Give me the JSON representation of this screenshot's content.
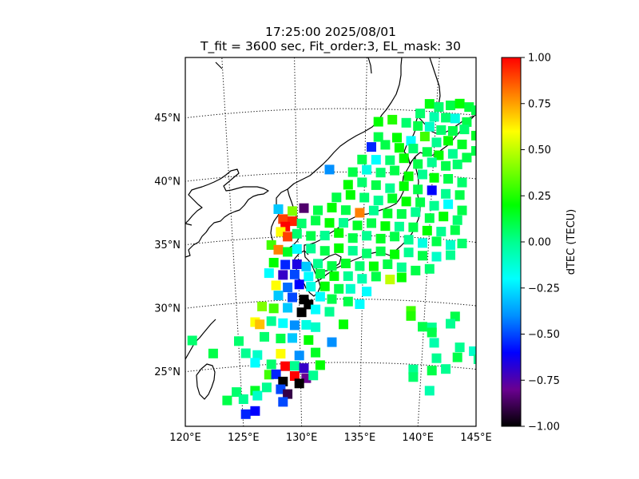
{
  "title": {
    "line1": "17:25:00 2025/08/01",
    "line2": "T_fit = 3600 sec, Fit_order:3, EL_mask: 30"
  },
  "map": {
    "lon_range": [
      120,
      145
    ],
    "lat_range": [
      20,
      49
    ],
    "graticule_style": "dotted",
    "lon_ticks": [
      {
        "value": 120,
        "label": "120°E"
      },
      {
        "value": 125,
        "label": "125°E"
      },
      {
        "value": 130,
        "label": "130°E"
      },
      {
        "value": 135,
        "label": "135°E"
      },
      {
        "value": 140,
        "label": "140°E"
      },
      {
        "value": 145,
        "label": "145°E"
      }
    ],
    "lat_ticks": [
      {
        "value": 25,
        "label": "25°N"
      },
      {
        "value": 30,
        "label": "30°N"
      },
      {
        "value": 35,
        "label": "35°N"
      },
      {
        "value": 40,
        "label": "40°N"
      },
      {
        "value": 45,
        "label": "45°N"
      }
    ]
  },
  "colorbar": {
    "label": "dTEC (TECU)",
    "range": [
      -1.0,
      1.0
    ],
    "ticks": [
      {
        "value": 1.0,
        "label": "1.00"
      },
      {
        "value": 0.75,
        "label": "0.75"
      },
      {
        "value": 0.5,
        "label": "0.50"
      },
      {
        "value": 0.25,
        "label": "0.25"
      },
      {
        "value": 0.0,
        "label": "0.00"
      },
      {
        "value": -0.25,
        "label": "−0.25"
      },
      {
        "value": -0.5,
        "label": "−0.50"
      },
      {
        "value": -0.75,
        "label": "−0.75"
      },
      {
        "value": -1.0,
        "label": "−1.00"
      }
    ],
    "colormap": [
      "#000000",
      "#6a0090",
      "#0000ff",
      "#0090ff",
      "#00ffff",
      "#00ff90",
      "#00ff00",
      "#80ff00",
      "#ffff00",
      "#ff8000",
      "#ff0000"
    ]
  },
  "chart_data": {
    "type": "scatter",
    "note_fields": "lon, lat, dTEC",
    "points": [
      [
        141.0,
        45.6,
        0.18
      ],
      [
        141.8,
        45.4,
        0.05
      ],
      [
        142.8,
        45.6,
        0.1
      ],
      [
        143.6,
        45.8,
        0.2
      ],
      [
        144.4,
        45.6,
        0.12
      ],
      [
        145.0,
        45.4,
        0.1
      ],
      [
        140.2,
        44.8,
        0.05
      ],
      [
        141.4,
        44.6,
        -0.05
      ],
      [
        142.4,
        44.6,
        0.05
      ],
      [
        143.2,
        44.6,
        -0.15
      ],
      [
        144.2,
        44.4,
        0.1
      ],
      [
        136.6,
        44.0,
        0.2
      ],
      [
        137.8,
        44.2,
        0.25
      ],
      [
        139.0,
        44.0,
        0.05
      ],
      [
        140.0,
        43.8,
        0.1
      ],
      [
        141.0,
        43.8,
        -0.1
      ],
      [
        142.0,
        43.6,
        0.05
      ],
      [
        143.0,
        43.6,
        0.1
      ],
      [
        144.0,
        43.8,
        0.05
      ],
      [
        145.0,
        43.4,
        0.15
      ],
      [
        136.6,
        42.8,
        0.1
      ],
      [
        138.2,
        42.8,
        0.2
      ],
      [
        139.4,
        42.6,
        -0.2
      ],
      [
        140.6,
        43.0,
        0.3
      ],
      [
        141.6,
        42.6,
        0.0
      ],
      [
        142.6,
        42.8,
        0.2
      ],
      [
        143.8,
        42.6,
        0.15
      ],
      [
        136.0,
        42.0,
        -0.55
      ],
      [
        137.2,
        42.2,
        0.1
      ],
      [
        138.4,
        42.0,
        0.2
      ],
      [
        139.6,
        42.0,
        0.05
      ],
      [
        140.8,
        41.8,
        0.1
      ],
      [
        141.8,
        41.6,
        0.2
      ],
      [
        143.0,
        41.8,
        0.0
      ],
      [
        144.2,
        41.6,
        0.1
      ],
      [
        145.0,
        42.2,
        0.1
      ],
      [
        135.2,
        41.0,
        0.1
      ],
      [
        136.4,
        41.0,
        -0.2
      ],
      [
        137.6,
        41.0,
        0.05
      ],
      [
        138.8,
        41.2,
        0.2
      ],
      [
        140.0,
        40.8,
        0.1
      ],
      [
        141.2,
        41.0,
        0.0
      ],
      [
        142.4,
        40.8,
        0.1
      ],
      [
        143.4,
        41.0,
        0.05
      ],
      [
        132.4,
        40.2,
        -0.4
      ],
      [
        134.4,
        40.0,
        0.1
      ],
      [
        135.6,
        40.2,
        -0.15
      ],
      [
        136.8,
        40.0,
        0.05
      ],
      [
        138.0,
        40.2,
        0.1
      ],
      [
        139.2,
        39.8,
        0.2
      ],
      [
        140.4,
        40.0,
        0.0
      ],
      [
        141.4,
        39.8,
        0.2
      ],
      [
        142.6,
        39.8,
        0.1
      ],
      [
        143.8,
        39.6,
        0.05
      ],
      [
        134.0,
        39.0,
        0.2
      ],
      [
        135.2,
        39.2,
        0.05
      ],
      [
        136.4,
        39.0,
        0.1
      ],
      [
        137.6,
        38.8,
        0.0
      ],
      [
        138.8,
        39.0,
        0.2
      ],
      [
        140.0,
        38.8,
        0.1
      ],
      [
        141.2,
        38.8,
        -0.6
      ],
      [
        142.4,
        38.6,
        0.0
      ],
      [
        143.6,
        38.6,
        0.1
      ],
      [
        133.0,
        38.0,
        0.1
      ],
      [
        134.2,
        38.2,
        0.2
      ],
      [
        135.4,
        38.0,
        0.05
      ],
      [
        136.6,
        37.8,
        0.0
      ],
      [
        137.8,
        38.0,
        0.15
      ],
      [
        139.0,
        37.8,
        0.2
      ],
      [
        140.2,
        37.8,
        0.1
      ],
      [
        141.4,
        37.6,
        0.0
      ],
      [
        142.6,
        37.8,
        -0.2
      ],
      [
        143.8,
        37.4,
        0.1
      ],
      [
        128.0,
        37.2,
        -0.3
      ],
      [
        129.2,
        37.0,
        0.4
      ],
      [
        130.2,
        37.2,
        -0.85
      ],
      [
        131.4,
        37.0,
        0.1
      ],
      [
        132.6,
        37.2,
        0.2
      ],
      [
        133.8,
        37.0,
        0.1
      ],
      [
        135.0,
        36.8,
        0.8
      ],
      [
        136.2,
        37.0,
        0.0
      ],
      [
        137.4,
        36.8,
        0.15
      ],
      [
        138.6,
        36.8,
        0.1
      ],
      [
        139.8,
        37.0,
        0.0
      ],
      [
        141.0,
        36.6,
        0.1
      ],
      [
        142.2,
        36.8,
        0.2
      ],
      [
        143.4,
        36.6,
        0.05
      ],
      [
        128.4,
        36.4,
        0.9
      ],
      [
        129.2,
        36.2,
        0.95
      ],
      [
        128.6,
        35.8,
        1.0
      ],
      [
        130.0,
        36.0,
        0.05
      ],
      [
        131.2,
        36.2,
        0.1
      ],
      [
        132.4,
        36.0,
        0.2
      ],
      [
        133.6,
        36.0,
        0.0
      ],
      [
        134.8,
        35.8,
        0.15
      ],
      [
        136.0,
        36.0,
        0.1
      ],
      [
        137.2,
        35.8,
        0.2
      ],
      [
        138.4,
        35.8,
        0.0
      ],
      [
        139.6,
        35.8,
        0.1
      ],
      [
        140.8,
        35.6,
        0.2
      ],
      [
        142.0,
        35.6,
        0.0
      ],
      [
        143.2,
        35.8,
        0.1
      ],
      [
        128.2,
        35.4,
        0.6
      ],
      [
        128.8,
        35.0,
        0.9
      ],
      [
        129.6,
        35.2,
        0.05
      ],
      [
        130.8,
        35.0,
        0.1
      ],
      [
        132.0,
        35.0,
        0.0
      ],
      [
        133.2,
        35.2,
        0.2
      ],
      [
        134.4,
        34.8,
        0.1
      ],
      [
        135.6,
        35.0,
        0.0
      ],
      [
        136.8,
        34.8,
        0.15
      ],
      [
        138.0,
        35.0,
        0.1
      ],
      [
        139.2,
        34.8,
        0.0
      ],
      [
        140.4,
        34.6,
        -0.15
      ],
      [
        141.6,
        34.8,
        0.1
      ],
      [
        142.8,
        34.6,
        -0.1
      ],
      [
        143.8,
        34.8,
        0.05
      ],
      [
        127.4,
        34.4,
        0.3
      ],
      [
        128.0,
        34.0,
        0.8
      ],
      [
        128.8,
        33.8,
        0.15
      ],
      [
        129.6,
        34.0,
        -0.2
      ],
      [
        130.8,
        34.0,
        0.0
      ],
      [
        132.0,
        33.8,
        0.1
      ],
      [
        133.2,
        34.0,
        0.2
      ],
      [
        134.4,
        33.8,
        0.0
      ],
      [
        135.6,
        33.6,
        0.05
      ],
      [
        136.8,
        33.8,
        0.1
      ],
      [
        138.0,
        33.6,
        0.2
      ],
      [
        139.2,
        33.8,
        0.0
      ],
      [
        140.4,
        33.6,
        0.1
      ],
      [
        141.6,
        33.6,
        -0.1
      ],
      [
        142.8,
        33.8,
        0.0
      ],
      [
        127.6,
        33.0,
        0.2
      ],
      [
        128.6,
        32.8,
        -0.55
      ],
      [
        129.6,
        32.8,
        -0.65
      ],
      [
        130.4,
        32.6,
        -0.3
      ],
      [
        131.4,
        32.8,
        0.0
      ],
      [
        132.6,
        32.6,
        0.1
      ],
      [
        133.8,
        32.8,
        0.15
      ],
      [
        135.0,
        32.6,
        0.05
      ],
      [
        136.2,
        32.6,
        0.2
      ],
      [
        137.4,
        32.8,
        0.1
      ],
      [
        138.6,
        32.6,
        0.0
      ],
      [
        139.8,
        32.4,
        0.1
      ],
      [
        141.0,
        32.6,
        0.05
      ],
      [
        127.2,
        32.2,
        -0.2
      ],
      [
        128.4,
        32.0,
        -0.7
      ],
      [
        129.4,
        32.0,
        -0.5
      ],
      [
        130.6,
        31.8,
        -0.2
      ],
      [
        131.6,
        32.0,
        0.1
      ],
      [
        132.8,
        31.8,
        0.2
      ],
      [
        134.0,
        31.8,
        0.0
      ],
      [
        135.2,
        31.6,
        -0.05
      ],
      [
        136.4,
        31.8,
        0.1
      ],
      [
        137.6,
        31.6,
        0.5
      ],
      [
        138.6,
        31.8,
        0.2
      ],
      [
        127.8,
        31.2,
        0.6
      ],
      [
        128.8,
        31.0,
        -0.45
      ],
      [
        129.8,
        31.2,
        -0.6
      ],
      [
        130.8,
        31.0,
        -0.15
      ],
      [
        132.0,
        31.0,
        0.2
      ],
      [
        133.2,
        30.8,
        0.1
      ],
      [
        134.2,
        30.8,
        -0.1
      ],
      [
        135.6,
        30.6,
        -0.2
      ],
      [
        128.0,
        30.4,
        -0.3
      ],
      [
        129.2,
        30.2,
        -0.5
      ],
      [
        130.2,
        30.0,
        -1.0
      ],
      [
        130.6,
        29.6,
        -1.0
      ],
      [
        131.6,
        30.2,
        -0.2
      ],
      [
        132.6,
        30.0,
        0.1
      ],
      [
        134.0,
        29.8,
        0.1
      ],
      [
        135.0,
        29.6,
        -0.2
      ],
      [
        126.6,
        29.6,
        0.4
      ],
      [
        127.6,
        29.4,
        0.3
      ],
      [
        128.8,
        29.4,
        -0.3
      ],
      [
        130.0,
        29.0,
        -1.0
      ],
      [
        131.2,
        29.2,
        -0.2
      ],
      [
        132.4,
        29.0,
        0.0
      ],
      [
        139.4,
        29.2,
        0.3
      ],
      [
        139.4,
        28.8,
        0.25
      ],
      [
        143.2,
        29.0,
        0.1
      ],
      [
        126.0,
        28.4,
        0.6
      ],
      [
        126.4,
        28.2,
        0.7
      ],
      [
        127.4,
        28.4,
        0.0
      ],
      [
        128.4,
        28.2,
        -0.2
      ],
      [
        129.4,
        28.0,
        -0.4
      ],
      [
        130.4,
        28.0,
        -0.15
      ],
      [
        131.2,
        27.8,
        -0.1
      ],
      [
        133.6,
        28.0,
        0.2
      ],
      [
        140.4,
        28.0,
        0.1
      ],
      [
        141.2,
        28.0,
        0.0
      ],
      [
        141.2,
        27.6,
        0.1
      ],
      [
        142.8,
        28.4,
        0.0
      ],
      [
        120.6,
        27.4,
        0.05
      ],
      [
        124.6,
        27.0,
        0.05
      ],
      [
        126.8,
        27.2,
        0.05
      ],
      [
        128.2,
        27.0,
        0.1
      ],
      [
        129.2,
        27.0,
        -0.3
      ],
      [
        130.6,
        26.8,
        0.2
      ],
      [
        132.6,
        26.6,
        -0.4
      ],
      [
        141.4,
        26.8,
        -0.05
      ],
      [
        143.6,
        26.6,
        0.0
      ],
      [
        144.8,
        26.4,
        -0.1
      ],
      [
        122.4,
        26.2,
        0.1
      ],
      [
        125.2,
        26.0,
        0.0
      ],
      [
        126.2,
        25.8,
        -0.1
      ],
      [
        128.2,
        25.8,
        0.6
      ],
      [
        129.8,
        25.6,
        -0.4
      ],
      [
        131.2,
        25.8,
        0.15
      ],
      [
        141.6,
        25.6,
        0.0
      ],
      [
        143.4,
        25.8,
        0.1
      ],
      [
        145.2,
        25.8,
        0.0
      ],
      [
        126.0,
        25.2,
        -0.2
      ],
      [
        127.4,
        25.0,
        0.05
      ],
      [
        128.6,
        24.8,
        1.0
      ],
      [
        129.4,
        24.8,
        0.0
      ],
      [
        130.2,
        24.6,
        -0.7
      ],
      [
        131.6,
        24.8,
        0.2
      ],
      [
        139.6,
        24.6,
        0.0
      ],
      [
        141.2,
        24.6,
        0.1
      ],
      [
        142.4,
        24.8,
        0.0
      ],
      [
        127.2,
        24.2,
        0.3
      ],
      [
        127.8,
        24.2,
        -0.55
      ],
      [
        129.4,
        24.0,
        1.0
      ],
      [
        130.4,
        23.8,
        -0.8
      ],
      [
        128.4,
        23.6,
        -1.0
      ],
      [
        129.8,
        23.4,
        -1.0
      ],
      [
        131.0,
        24.0,
        0.0
      ],
      [
        139.6,
        24.0,
        0.05
      ],
      [
        124.4,
        23.0,
        0.05
      ],
      [
        126.0,
        23.0,
        0.15
      ],
      [
        127.0,
        23.2,
        0.0
      ],
      [
        128.2,
        23.0,
        -0.5
      ],
      [
        128.8,
        22.6,
        -0.9
      ],
      [
        141.0,
        23.0,
        -0.05
      ],
      [
        123.6,
        22.4,
        0.1
      ],
      [
        125.0,
        22.4,
        0.0
      ],
      [
        126.2,
        22.6,
        -0.1
      ],
      [
        128.4,
        22.0,
        -0.5
      ],
      [
        125.2,
        21.2,
        -0.55
      ],
      [
        126.0,
        21.4,
        -0.6
      ]
    ]
  }
}
